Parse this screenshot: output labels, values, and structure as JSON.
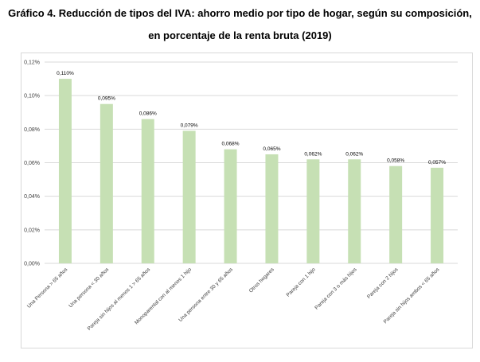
{
  "title_line1": "Gráfico 4. Reducción de tipos del IVA: ahorro medio por tipo de hogar, según su composición,",
  "title_line2": "en porcentaje de la renta bruta (2019)",
  "chart_data": {
    "type": "bar",
    "title": "Gráfico 4. Reducción de tipos del IVA: ahorro medio por tipo de hogar, según su composición, en porcentaje de la renta bruta (2019)",
    "categories": [
      "Una Persona > 65 años",
      "Una persona < 30 años",
      "Pareja sin hijos al menos 1 > 65 años",
      "Monoparental con al menos 1 hijo",
      "Una persona entre 30 y 65 años",
      "Otros hogares",
      "Pareja con 1 hijo",
      "Pareja con 3 o más hijos",
      "Pareja con 2 hijos",
      "Pareja sin hijos ambos < 65 años"
    ],
    "values": [
      0.11,
      0.095,
      0.086,
      0.079,
      0.068,
      0.065,
      0.062,
      0.062,
      0.058,
      0.057
    ],
    "data_labels": [
      "0,110%",
      "0,095%",
      "0,086%",
      "0,079%",
      "0,068%",
      "0,065%",
      "0,062%",
      "0,062%",
      "0,058%",
      "0,057%"
    ],
    "y_ticks": [
      0,
      0.02,
      0.04,
      0.06,
      0.08,
      0.1,
      0.12
    ],
    "y_tick_labels": [
      "0,00%",
      "0,02%",
      "0,04%",
      "0,06%",
      "0,08%",
      "0,10%",
      "0,12%"
    ],
    "ylim": [
      0,
      0.12
    ],
    "xlabel": "",
    "ylabel": "",
    "grid": true,
    "bar_color": "#c6e0b4",
    "grid_color": "#d9d9d9"
  }
}
